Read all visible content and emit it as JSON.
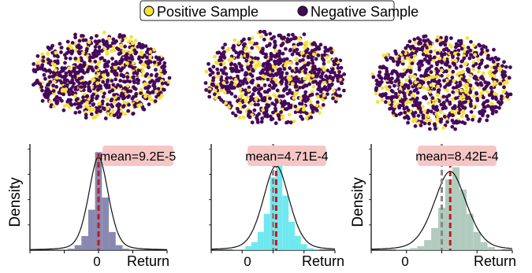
{
  "legend": {
    "items": [
      {
        "label": "Positive Sample",
        "color": "#f7e13a"
      },
      {
        "label": "Negative Sample",
        "color": "#46095a"
      }
    ]
  },
  "colors": {
    "positive": "#f7e13a",
    "negative": "#46095a",
    "mean_line": "#c21a1a",
    "zero_line": "#888888",
    "mean_box": "#f6c6c6",
    "kde_line": "#111111"
  },
  "chart_data": [
    {
      "type": "scatter",
      "title": "",
      "series": [
        {
          "name": "Positive Sample",
          "color": "#f7e13a"
        },
        {
          "name": "Negative Sample",
          "color": "#46095a"
        }
      ],
      "shape": "ellipse",
      "points_shown": "about 900, about 25% positive"
    },
    {
      "type": "scatter",
      "title": "",
      "series": [
        {
          "name": "Positive Sample",
          "color": "#f7e13a"
        },
        {
          "name": "Negative Sample",
          "color": "#46095a"
        }
      ],
      "shape": "ellipse",
      "points_shown": "about 900, about 25% positive"
    },
    {
      "type": "scatter",
      "title": "",
      "series": [
        {
          "name": "Positive Sample",
          "color": "#f7e13a"
        },
        {
          "name": "Negative Sample",
          "color": "#46095a"
        }
      ],
      "shape": "ellipse",
      "points_shown": "about 900, about 30% positive"
    },
    {
      "type": "bar",
      "subtype": "histogram with KDE",
      "xlabel": "Return",
      "ylabel": "Density",
      "xticks": [
        "0"
      ],
      "x_centers": [
        -6,
        -5,
        -4,
        -3,
        -2,
        -1,
        0,
        1,
        2,
        3,
        4,
        5,
        6
      ],
      "values": [
        0.2,
        0.5,
        1.5,
        5,
        14,
        40,
        97,
        52,
        18,
        5,
        1.5,
        0.5,
        0.2
      ],
      "fill": "#7b7ba8",
      "mean_label": "mean=9.2E-5",
      "mean": 0.0,
      "zero_line": false,
      "xlim": [
        -10,
        10
      ],
      "ylim": [
        0,
        105
      ],
      "kde_sd": 1.5
    },
    {
      "type": "bar",
      "subtype": "histogram with KDE",
      "xlabel": "Return",
      "ylabel": "",
      "xticks": [
        "0"
      ],
      "x_centers": [
        -6,
        -5,
        -4,
        -3,
        -2,
        -1,
        0,
        1,
        2,
        3,
        4,
        5,
        6,
        7
      ],
      "values": [
        0.5,
        1,
        4,
        8,
        18,
        36,
        72,
        88,
        54,
        28,
        14,
        6,
        2,
        1
      ],
      "fill": "#5fe6ee",
      "mean_label": "mean=4.71E-4",
      "mean": 0.5,
      "zero_line": true,
      "xlim": [
        -10,
        10
      ],
      "ylim": [
        0,
        105
      ],
      "kde_sd": 2.2
    },
    {
      "type": "bar",
      "subtype": "histogram with KDE",
      "xlabel": "Return",
      "ylabel": "Density",
      "xticks": [
        "0"
      ],
      "x_centers": [
        -6,
        -5,
        -4,
        -3,
        -2,
        -1,
        0,
        1,
        2,
        3,
        4,
        5,
        6,
        7,
        8
      ],
      "values": [
        0.5,
        1,
        2,
        4,
        10,
        22,
        42,
        70,
        82,
        60,
        36,
        18,
        8,
        3,
        1
      ],
      "fill": "#a9c6b8",
      "mean_label": "mean=8.42E-4",
      "mean": 1.2,
      "zero_line": true,
      "xlim": [
        -10,
        10
      ],
      "ylim": [
        0,
        105
      ],
      "kde_sd": 2.4
    }
  ]
}
